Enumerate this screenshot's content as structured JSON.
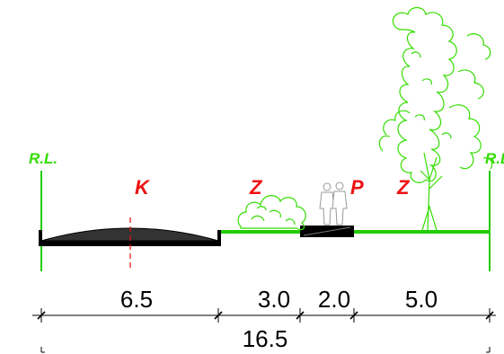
{
  "colors": {
    "line_green": "#22cc00",
    "tree_green": "#33dd00",
    "zone_red": "#ee1111",
    "road_dark": "#333333",
    "black": "#000000"
  },
  "labels": {
    "rl_left": "R.L.",
    "rl_right": "R.L.",
    "zone_k": "K",
    "zone_z_shrub": "Z",
    "zone_p": "P",
    "zone_z_tree": "Z"
  },
  "dimensions": {
    "road": "6.5",
    "verge": "3.0",
    "path": "2.0",
    "green": "5.0",
    "total": "16.5"
  },
  "icons": {
    "shrub": "shrub-icon",
    "tree": "tree-icon",
    "pedestrians": "pedestrians-icon"
  }
}
